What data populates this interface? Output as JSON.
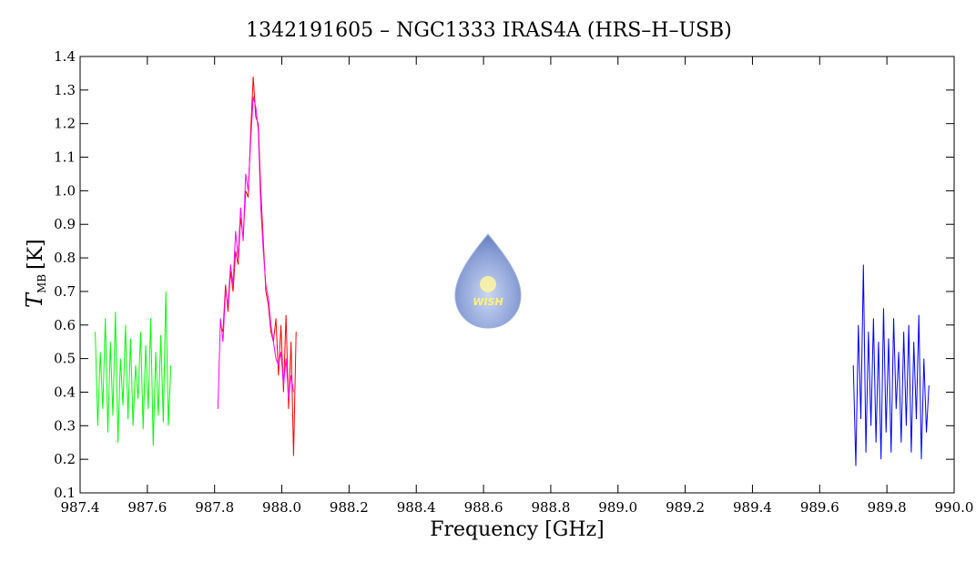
{
  "chart_data": {
    "type": "line",
    "title": "1342191605 – NGC1333 IRAS4A (HRS–H–USB)",
    "x_label": "Frequency [GHz]",
    "y_label": "T",
    "y_label_sub": "MB",
    "y_label_unit": "[K]",
    "logo_text": "WISH",
    "xlim": [
      987.4,
      990.0
    ],
    "ylim": [
      0.1,
      1.4
    ],
    "xticks": [
      987.4,
      987.6,
      {
        "value": 987.8,
        "label": "987.8"
      },
      {
        "value": 988.0,
        "label": "988.0"
      },
      988.2,
      988.4,
      988.6,
      988.8,
      {
        "value": 989.0,
        "label": "989.0"
      },
      989.2,
      989.4,
      989.6,
      989.8,
      {
        "value": 990.0,
        "label": "990.0"
      }
    ],
    "yticks": [
      0.1,
      0.2,
      0.3,
      0.4,
      0.5,
      0.6,
      0.7,
      0.8,
      0.9,
      {
        "value": 1.0,
        "label": "1.0"
      },
      1.1,
      1.2,
      1.3,
      1.4
    ],
    "series": [
      {
        "color": "#00ff00",
        "x": [
          987.445,
          987.4525,
          987.46,
          987.4675,
          987.475,
          987.4825,
          987.49,
          987.4975,
          987.505,
          987.5125,
          987.52,
          987.5275,
          987.535,
          987.5425,
          987.55,
          987.5575,
          987.565,
          987.5725,
          987.58,
          987.5875,
          987.595,
          987.6025,
          987.61,
          987.6175,
          987.625,
          987.6325,
          987.64,
          987.6475,
          987.655,
          987.6625,
          987.67
        ],
        "values": [
          0.58,
          0.3,
          0.52,
          0.35,
          0.62,
          0.28,
          0.55,
          0.33,
          0.64,
          0.25,
          0.5,
          0.36,
          0.6,
          0.32,
          0.56,
          0.3,
          0.48,
          0.38,
          0.58,
          0.29,
          0.54,
          0.35,
          0.62,
          0.24,
          0.52,
          0.33,
          0.57,
          0.31,
          0.7,
          0.3,
          0.48
        ]
      },
      {
        "color": "#ff0000",
        "x": [
          987.8175,
          987.825,
          987.8325,
          987.84,
          987.8475,
          987.855,
          987.8625,
          987.87,
          987.8775,
          987.885,
          987.8925,
          987.9,
          987.9075,
          987.915,
          987.9225,
          987.93,
          987.9375,
          987.945,
          987.9525,
          987.96,
          987.9675,
          987.975,
          987.9825,
          987.99,
          987.9975,
          988.005,
          988.0125,
          988.02,
          988.0275,
          988.035,
          988.0425
        ],
        "values": [
          0.6,
          0.58,
          0.72,
          0.64,
          0.76,
          0.7,
          0.82,
          0.78,
          0.92,
          0.86,
          1.0,
          0.98,
          1.18,
          1.34,
          1.22,
          1.2,
          1.0,
          0.85,
          0.7,
          0.66,
          0.58,
          0.55,
          0.62,
          0.45,
          0.6,
          0.4,
          0.63,
          0.35,
          0.55,
          0.21,
          0.58
        ]
      },
      {
        "color": "#ff00ff",
        "x": [
          987.81,
          987.8175,
          987.825,
          987.8325,
          987.84,
          987.8475,
          987.855,
          987.8625,
          987.87,
          987.8775,
          987.885,
          987.8925,
          987.9,
          987.9075,
          987.915,
          987.9225,
          987.93,
          987.9375,
          987.945,
          987.9525,
          987.96,
          987.9675,
          987.975,
          987.9825,
          987.99,
          987.9975,
          988.005,
          988.0125,
          988.02,
          988.0275,
          988.035
        ],
        "values": [
          0.35,
          0.62,
          0.55,
          0.7,
          0.66,
          0.78,
          0.72,
          0.88,
          0.8,
          0.95,
          0.85,
          1.05,
          1.0,
          1.15,
          1.28,
          1.25,
          1.18,
          0.95,
          0.82,
          0.72,
          0.68,
          0.6,
          0.55,
          0.5,
          0.48,
          0.52,
          0.42,
          0.5,
          0.38,
          0.45,
          0.4
        ]
      },
      {
        "color": "#0000ff",
        "x": [
          989.7,
          989.7075,
          989.715,
          989.7225,
          989.73,
          989.7375,
          989.745,
          989.7525,
          989.76,
          989.7675,
          989.775,
          989.7825,
          989.79,
          989.7975,
          989.805,
          989.8125,
          989.82,
          989.8275,
          989.835,
          989.8425,
          989.85,
          989.8575,
          989.865,
          989.8725,
          989.88,
          989.8875,
          989.895,
          989.9025,
          989.91,
          989.9175,
          989.925
        ],
        "values": [
          0.48,
          0.18,
          0.6,
          0.32,
          0.78,
          0.22,
          0.58,
          0.3,
          0.62,
          0.25,
          0.55,
          0.2,
          0.65,
          0.28,
          0.56,
          0.22,
          0.62,
          0.35,
          0.52,
          0.25,
          0.58,
          0.3,
          0.6,
          0.22,
          0.55,
          0.32,
          0.63,
          0.2,
          0.5,
          0.28,
          0.42
        ]
      }
    ]
  }
}
